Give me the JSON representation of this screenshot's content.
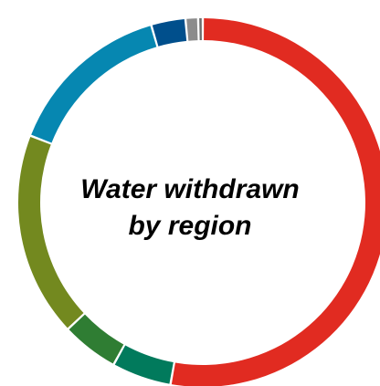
{
  "chart_data": {
    "type": "pie",
    "variant": "donut",
    "title_lines": [
      "Water withdrawn",
      "by region"
    ],
    "legend": "none",
    "slices": [
      {
        "value": 52.8,
        "color": "#e12b21"
      },
      {
        "value": 5.2,
        "color": "#017a5c"
      },
      {
        "value": 5.0,
        "color": "#2f7d33"
      },
      {
        "value": 17.9,
        "color": "#73891f"
      },
      {
        "value": 14.6,
        "color": "#0687b1"
      },
      {
        "value": 3.0,
        "color": "#004f8c"
      },
      {
        "value": 1.1,
        "color": "#8c8c8c"
      },
      {
        "value": 0.4,
        "color": "#6b6b6b"
      }
    ]
  }
}
